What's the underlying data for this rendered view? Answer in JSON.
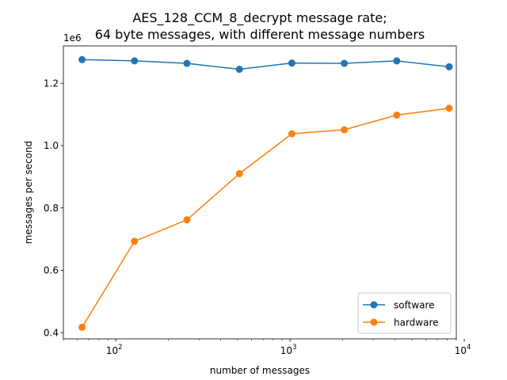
{
  "chart_data": {
    "type": "line",
    "title_line1": "AES_128_CCM_8_decrypt message rate;",
    "title_line2": "64 byte messages, with different message numbers",
    "xlabel": "number of messages",
    "ylabel": "messages per second",
    "x_scale": "log",
    "y_offset_label": "1e6",
    "xlim": [
      50,
      9000
    ],
    "ylim": [
      0.38,
      1.32
    ],
    "x_ticks": [
      100,
      1000,
      10000
    ],
    "x_tick_labels": [
      "10",
      "10",
      "10"
    ],
    "x_tick_exponents": [
      "2",
      "3",
      "4"
    ],
    "y_ticks": [
      0.4,
      0.6,
      0.8,
      1.0,
      1.2
    ],
    "y_tick_labels": [
      "0.4",
      "0.6",
      "0.8",
      "1.0",
      "1.2"
    ],
    "x": [
      64,
      128,
      256,
      512,
      1024,
      2048,
      4096,
      8192
    ],
    "series": [
      {
        "name": "software",
        "color": "#1f77b4",
        "values": [
          1.276,
          1.272,
          1.264,
          1.245,
          1.265,
          1.264,
          1.272,
          1.253
        ]
      },
      {
        "name": "hardware",
        "color": "#ff7f0e",
        "values": [
          0.417,
          0.693,
          0.762,
          0.91,
          1.038,
          1.051,
          1.098,
          1.12
        ]
      }
    ],
    "legend_position": "lower-right",
    "grid": false
  }
}
